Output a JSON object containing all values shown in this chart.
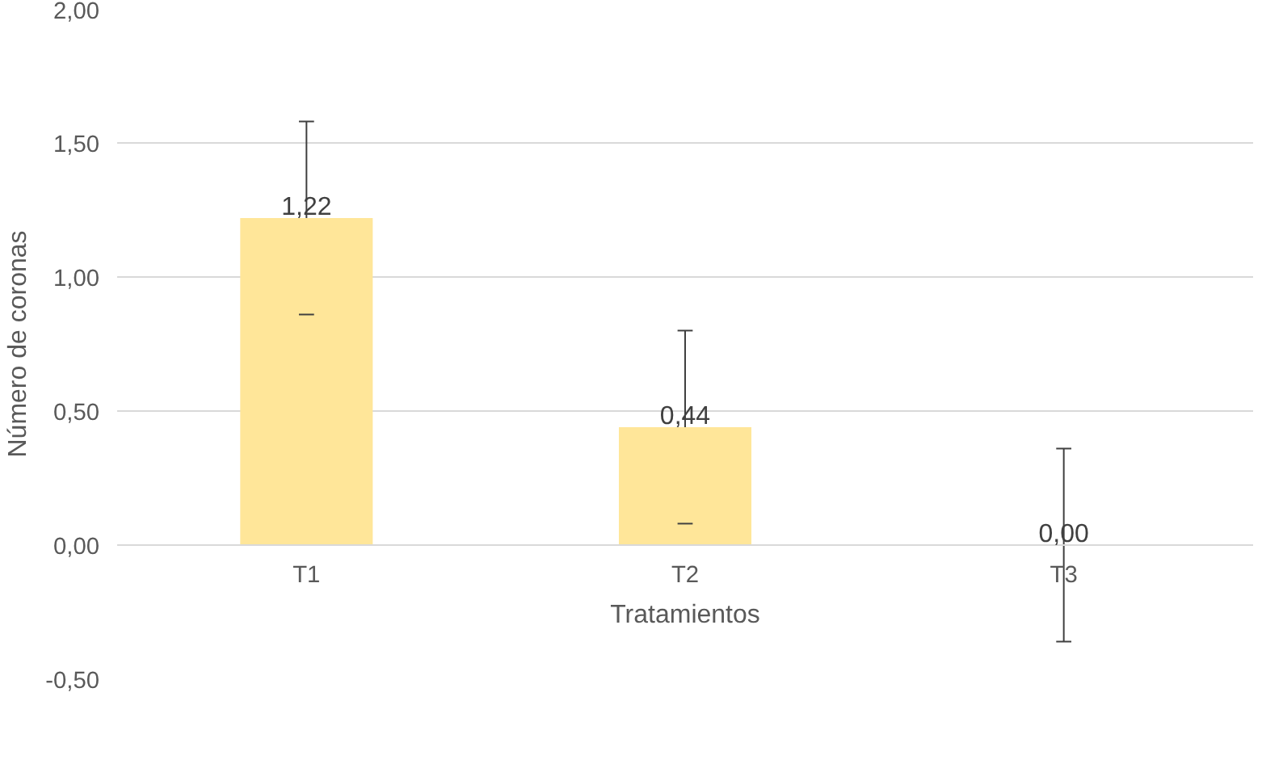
{
  "chart_data": {
    "type": "bar",
    "xlabel": "Tratamientos",
    "ylabel": "Número de coronas",
    "categories": [
      "T1",
      "T2",
      "T3"
    ],
    "values": [
      1.22,
      0.44,
      0.0
    ],
    "errors": [
      0.36,
      0.36,
      0.36
    ],
    "color": "#ffe699",
    "ylim": [
      -0.5,
      2.0
    ],
    "yticks": [
      {
        "value": -0.5,
        "label": "-0,50"
      },
      {
        "value": 0,
        "label": "0,00"
      },
      {
        "value": 0.5,
        "label": "0,50"
      },
      {
        "value": 1.0,
        "label": "1,00"
      },
      {
        "value": 1.5,
        "label": "1,50"
      },
      {
        "value": 2.0,
        "label": "2,00"
      }
    ],
    "value_labels": [
      "1,22",
      "0,44",
      "0,00"
    ],
    "grid": "y"
  }
}
